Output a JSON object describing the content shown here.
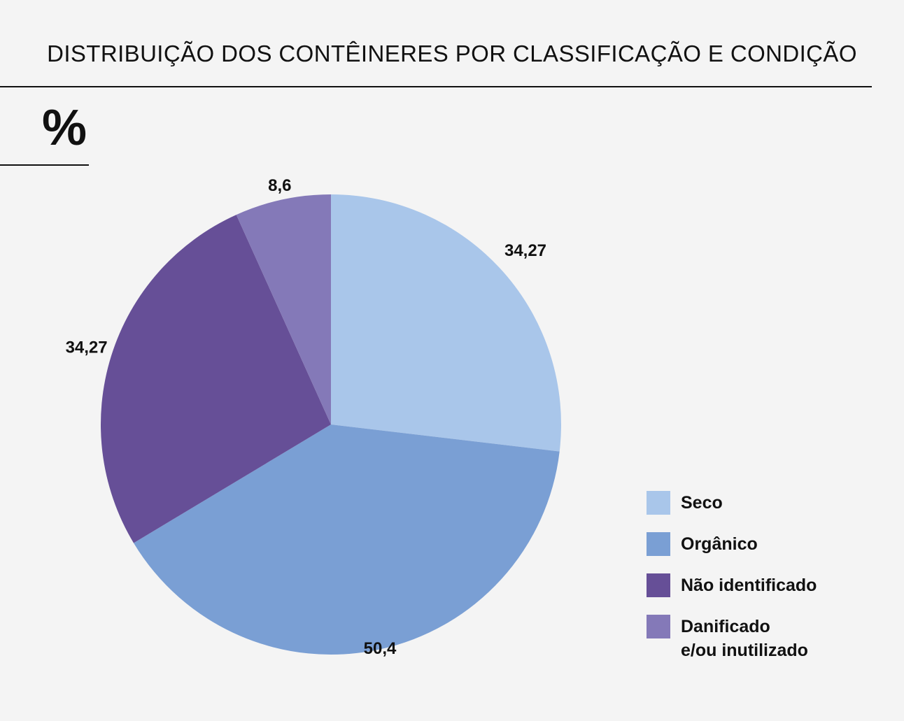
{
  "title": "DISTRIBUIÇÃO DOS CONTÊINERES POR CLASSIFICAÇÃO E CONDIÇÃO",
  "unit_label": "%",
  "chart_data": {
    "type": "pie",
    "title": "DISTRIBUIÇÃO DOS CONTÊINERES POR CLASSIFICAÇÃO E CONDIÇÃO",
    "unit": "%",
    "legend_position": "bottom-right",
    "slices": [
      {
        "name": "Seco",
        "value": 34.27,
        "label": "34,27",
        "color": "#a9c6ea"
      },
      {
        "name": "Orgânico",
        "value": 50.4,
        "label": "50,4",
        "color": "#7a9fd4"
      },
      {
        "name": "Não identificado",
        "value": 34.27,
        "label": "34,27",
        "color": "#664f97"
      },
      {
        "name": "Danificado e/ou inutilizado",
        "value": 8.6,
        "label": "8,6",
        "color": "#8479b8"
      }
    ]
  },
  "legend": {
    "items": [
      {
        "label": "Seco",
        "color": "#a9c6ea"
      },
      {
        "label": "Orgânico",
        "color": "#7a9fd4"
      },
      {
        "label": "Não identificado",
        "color": "#664f97"
      },
      {
        "label": "Danificado\ne/ou inutilizado",
        "color": "#8479b8"
      }
    ]
  }
}
